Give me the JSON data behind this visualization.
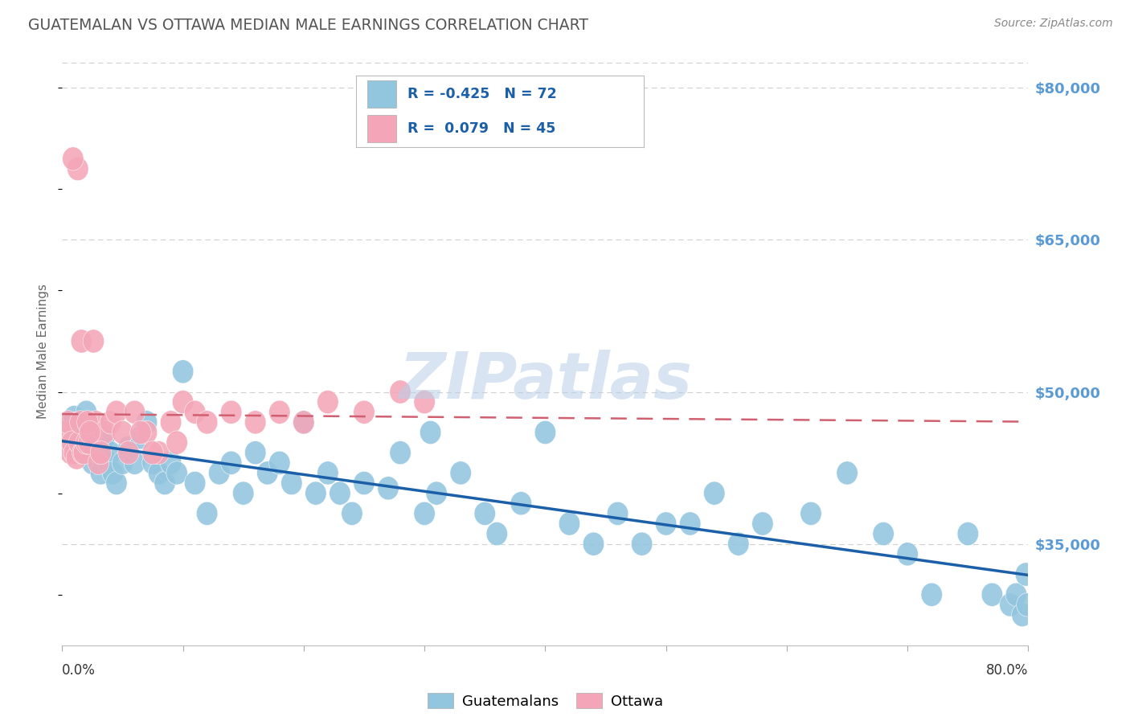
{
  "title": "GUATEMALAN VS OTTAWA MEDIAN MALE EARNINGS CORRELATION CHART",
  "source": "Source: ZipAtlas.com",
  "ylabel": "Median Male Earnings",
  "y_ticks": [
    35000,
    50000,
    65000,
    80000
  ],
  "y_tick_labels": [
    "$35,000",
    "$50,000",
    "$65,000",
    "$80,000"
  ],
  "x_min": 0.0,
  "x_max": 80.0,
  "y_min": 25000,
  "y_max": 83000,
  "watermark": "ZIPatlas",
  "blue_color": "#92c5de",
  "pink_color": "#f4a6b8",
  "blue_line_color": "#1a5fa8",
  "pink_line_color": "#d06070",
  "title_color": "#555555",
  "tick_label_color": "#5b9bd5",
  "legend_text_color": "#1a5fa8",
  "guatemalans_x": [
    1.0,
    1.2,
    1.5,
    1.8,
    2.0,
    2.2,
    2.5,
    2.7,
    3.0,
    3.2,
    3.5,
    3.8,
    4.0,
    4.2,
    4.5,
    5.0,
    5.5,
    6.0,
    6.5,
    7.0,
    7.5,
    8.0,
    8.5,
    9.0,
    9.5,
    10.0,
    11.0,
    12.0,
    13.0,
    14.0,
    15.0,
    16.0,
    17.0,
    18.0,
    19.0,
    20.0,
    21.0,
    22.0,
    23.0,
    24.0,
    25.0,
    27.0,
    28.0,
    30.0,
    31.0,
    33.0,
    35.0,
    36.0,
    38.0,
    40.0,
    42.0,
    44.0,
    46.0,
    48.0,
    50.0,
    52.0,
    54.0,
    56.0,
    58.0,
    62.0,
    65.0,
    68.0,
    70.0,
    72.0,
    75.0,
    77.0,
    78.5,
    79.0,
    79.5,
    79.8,
    79.9,
    30.5
  ],
  "guatemalans_y": [
    47500,
    46000,
    47000,
    44000,
    48000,
    45000,
    43000,
    46000,
    44000,
    42000,
    45500,
    43000,
    44000,
    42000,
    41000,
    43000,
    44500,
    43000,
    45500,
    47000,
    43000,
    42000,
    41000,
    43000,
    42000,
    52000,
    41000,
    38000,
    42000,
    43000,
    40000,
    44000,
    42000,
    43000,
    41000,
    47000,
    40000,
    42000,
    40000,
    38000,
    41000,
    40500,
    44000,
    38000,
    40000,
    42000,
    38000,
    36000,
    39000,
    46000,
    37000,
    35000,
    38000,
    35000,
    37000,
    37000,
    40000,
    35000,
    37000,
    38000,
    42000,
    36000,
    34000,
    30000,
    36000,
    30000,
    29000,
    30000,
    28000,
    32000,
    29000,
    46000
  ],
  "ottawa_x": [
    0.3,
    0.5,
    0.7,
    0.8,
    1.0,
    1.2,
    1.4,
    1.5,
    1.7,
    1.8,
    2.0,
    2.2,
    2.5,
    2.8,
    3.0,
    3.5,
    4.0,
    4.5,
    5.0,
    5.5,
    6.0,
    7.0,
    8.0,
    9.0,
    10.0,
    11.0,
    12.0,
    14.0,
    16.0,
    18.0,
    20.0,
    22.0,
    25.0,
    28.0,
    30.0,
    1.3,
    0.9,
    2.1,
    2.3,
    3.2,
    6.5,
    7.5,
    9.5,
    1.6,
    2.6
  ],
  "ottawa_y": [
    46000,
    47000,
    44000,
    45000,
    44000,
    43500,
    45000,
    47000,
    44000,
    44000,
    45000,
    45000,
    46000,
    47000,
    43000,
    46000,
    47000,
    48000,
    46000,
    44000,
    48000,
    46000,
    44000,
    47000,
    49000,
    48000,
    47000,
    48000,
    47000,
    48000,
    47000,
    49000,
    48000,
    50000,
    49000,
    72000,
    73000,
    47000,
    46000,
    44000,
    46000,
    44000,
    45000,
    55000,
    55000
  ]
}
